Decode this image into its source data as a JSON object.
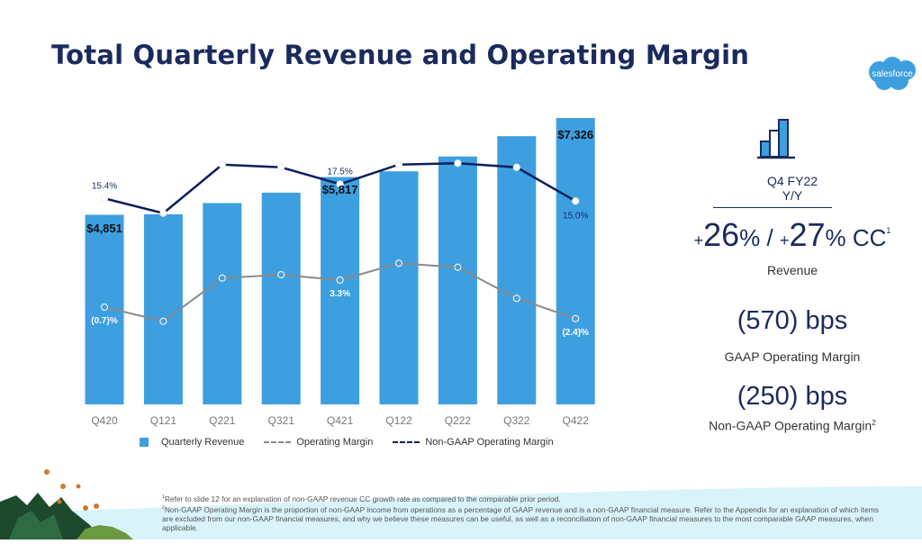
{
  "title": "Total Quarterly Revenue and Operating Margin",
  "logo": {
    "text": "salesforce",
    "color": "#3d9fe0"
  },
  "colors": {
    "title": "#1b2a5e",
    "bar": "#3d9fe0",
    "non_gaap_line": "#0c1f5c",
    "gaap_line": "#8a8a8a"
  },
  "chart_data": {
    "type": "bar",
    "categories": [
      "Q420",
      "Q121",
      "Q221",
      "Q321",
      "Q421",
      "Q122",
      "Q222",
      "Q322",
      "Q422"
    ],
    "series": [
      {
        "name": "Quarterly Revenue",
        "type": "bar",
        "values": [
          4851,
          4865,
          5151,
          5416,
          5817,
          5963,
          6343,
          6862,
          7326
        ],
        "labels": {
          "0": "$4,851",
          "4": "$5,817",
          "8": "$7,326"
        }
      },
      {
        "name": "Operating Margin",
        "type": "line",
        "values": [
          -0.7,
          -2.8,
          3.6,
          4.1,
          3.3,
          5.8,
          5.2,
          0.6,
          -2.4
        ],
        "labels": {
          "0": "(0.7)%",
          "4": "3.3%",
          "8": "(2.4)%"
        }
      },
      {
        "name": "Non-GAAP Operating Margin",
        "type": "line",
        "values": [
          15.4,
          13.2,
          20.4,
          20.0,
          17.5,
          20.4,
          20.6,
          20.0,
          15.0
        ],
        "labels": {
          "0": "15.4%",
          "4": "17.5%",
          "8": "15.0%"
        }
      }
    ],
    "legend": "bottom",
    "grid": false
  },
  "kpi": {
    "icon": "bar-chart-icon",
    "period": "Q4 FY22",
    "comparison": "Y/Y",
    "rev_plus1": "+",
    "rev_value1": "26",
    "rev_pct1": "%",
    "slash": " / ",
    "rev_plus2": "+",
    "rev_value2": "27",
    "rev_pct2": "% CC",
    "rev_sup": "1",
    "revenue_label": "Revenue",
    "gaap_change": "(570) bps",
    "gaap_label": "GAAP Operating Margin",
    "nongaap_change": "(250) bps",
    "nongaap_label": "Non-GAAP Operating Margin",
    "nongaap_sup": "2"
  },
  "footnotes": {
    "n1_sup": "1",
    "n1": "Refer to slide 12 for an explanation of non-GAAP revenue CC growth rate as compared to the comparable prior period.",
    "n2_sup": "2",
    "n2": "Non-GAAP Operating Margin is the proportion of non-GAAP income from operations as a percentage of GAAP revenue and is a non-GAAP financial measure. Refer to the Appendix for an explanation of which items are excluded from our non-GAAP financial measures, and why we believe these measures can be useful, as well as a reconciliation of non-GAAP financial measures to the most comparable GAAP measures, when applicable."
  }
}
